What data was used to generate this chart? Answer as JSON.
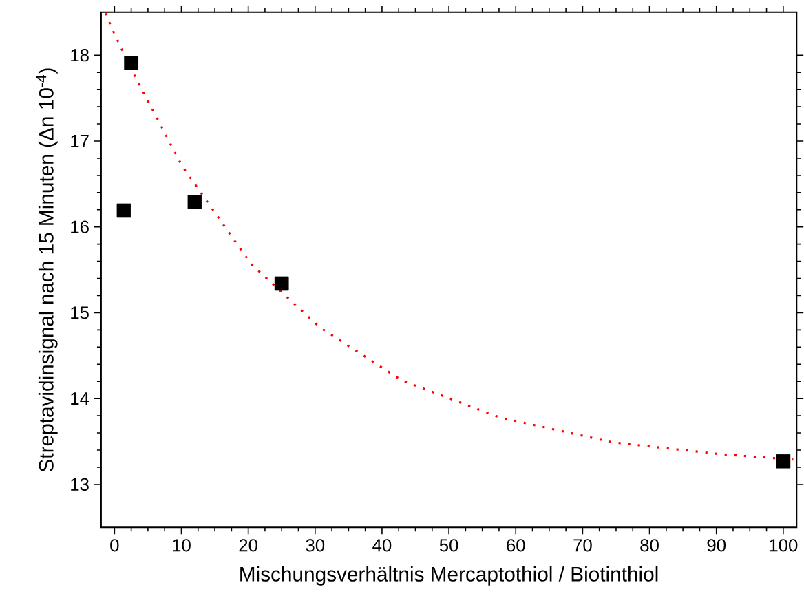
{
  "chart_data": {
    "type": "scatter",
    "xlabel": "Mischungsverhältnis Mercaptothiol / Biotinthiol",
    "ylabel": "Streptavidinsignal nach 15 Minuten (Δn 10$^{-4}$)",
    "xlim": [
      -2,
      102
    ],
    "ylim": [
      12.5,
      18.5
    ],
    "xticks": [
      0,
      10,
      20,
      30,
      40,
      50,
      60,
      70,
      80,
      90,
      100
    ],
    "yticks": [
      13,
      14,
      15,
      16,
      17,
      18
    ],
    "grid": false,
    "legend": false,
    "series": [
      {
        "type": "line",
        "color": "#ff0000",
        "line_style": "dotted",
        "marker": "none",
        "x": [
          -1.3,
          -0.5,
          2.5,
          10.1,
          20.4,
          30.7,
          43.0,
          57.6,
          74.5,
          90.9,
          101.5
        ],
        "values": [
          18.49,
          18.33,
          17.84,
          16.71,
          15.57,
          14.83,
          14.21,
          13.78,
          13.49,
          13.35,
          13.29
        ]
      },
      {
        "color": "#000000",
        "marker": "square",
        "x": [
          1.4,
          2.5,
          12,
          25,
          100
        ],
        "values": [
          16.19,
          17.91,
          16.29,
          15.34,
          13.27
        ]
      }
    ]
  }
}
